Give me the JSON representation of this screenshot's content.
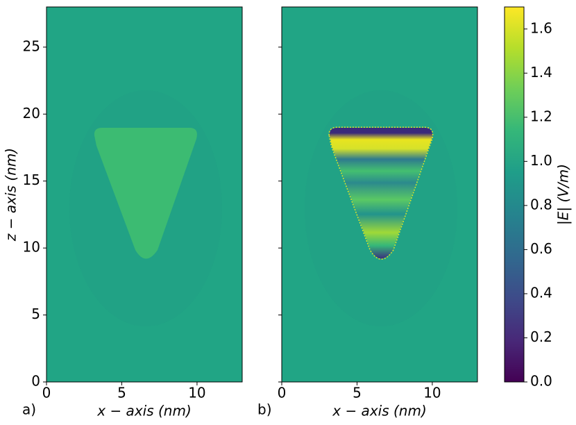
{
  "chart_data": [
    {
      "type": "heatmap",
      "label": "a)",
      "xlabel": "x − axis (nm)",
      "ylabel": "z − axis (nm)",
      "xlim": [
        0,
        13
      ],
      "ylim": [
        0,
        28
      ],
      "xticks": [
        0,
        5,
        10
      ],
      "yticks": [
        0,
        5,
        10,
        15,
        20,
        25
      ]
    },
    {
      "type": "heatmap",
      "label": "b)",
      "xlabel": "x − axis (nm)",
      "xlim": [
        0,
        13
      ],
      "ylim": [
        0,
        28
      ],
      "xticks": [
        0,
        5,
        10
      ],
      "yticks": [
        0,
        5,
        10,
        15,
        20,
        25
      ]
    },
    {
      "type": "colorbar",
      "label": "|E|  (V/m)",
      "clim": [
        0,
        1.7
      ],
      "ticks": [
        {
          "value": 0,
          "label": "0.0"
        },
        {
          "value": 0.2,
          "label": "0.2"
        },
        {
          "value": 0.4,
          "label": "0.4"
        },
        {
          "value": 0.6,
          "label": "0.6"
        },
        {
          "value": 0.8,
          "label": "0.8"
        },
        {
          "value": 1.0,
          "label": "1.0"
        },
        {
          "value": 1.2,
          "label": "1.2"
        },
        {
          "value": 1.4,
          "label": "1.4"
        },
        {
          "value": 1.6,
          "label": "1.6"
        }
      ]
    }
  ]
}
